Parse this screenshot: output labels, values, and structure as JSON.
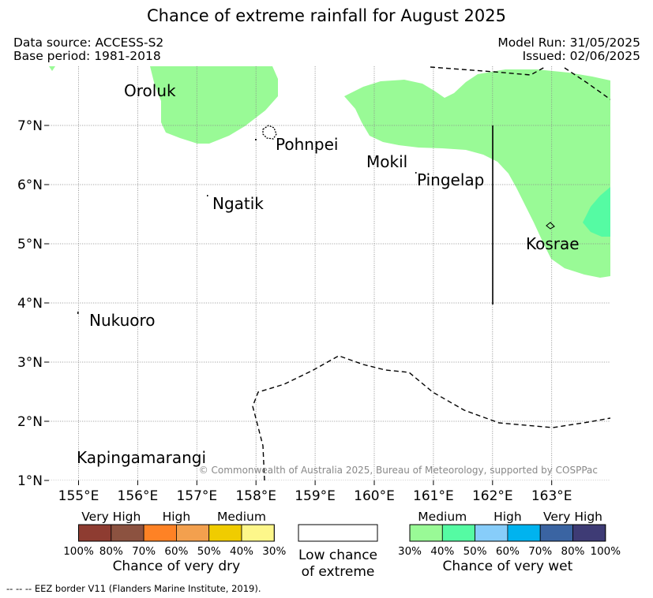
{
  "title": "Chance of extreme rainfall for August 2025",
  "header": {
    "data_source": "Data source: ACCESS-S2",
    "base_period": "Base period: 1981-2018",
    "model_run": "Model Run: 31/05/2025",
    "issued": "Issued: 02/06/2025"
  },
  "map": {
    "lon_range": [
      154.5,
      164
    ],
    "lat_range": [
      1,
      8
    ],
    "lat_ticks": [
      {
        "value": 7,
        "label": "7°N"
      },
      {
        "value": 6,
        "label": "6°N"
      },
      {
        "value": 5,
        "label": "5°N"
      },
      {
        "value": 4,
        "label": "4°N"
      },
      {
        "value": 3,
        "label": "3°N"
      },
      {
        "value": 2,
        "label": "2°N"
      },
      {
        "value": 1,
        "label": "1°N"
      }
    ],
    "lon_ticks": [
      {
        "value": 155,
        "label": "155°E"
      },
      {
        "value": 156,
        "label": "156°E"
      },
      {
        "value": 157,
        "label": "157°E"
      },
      {
        "value": 158,
        "label": "158°E"
      },
      {
        "value": 159,
        "label": "159°E"
      },
      {
        "value": 160,
        "label": "160°E"
      },
      {
        "value": 161,
        "label": "161°E"
      },
      {
        "value": 162,
        "label": "162°E"
      },
      {
        "value": 163,
        "label": "163°E"
      }
    ],
    "places": [
      {
        "name": "Oroluk"
      },
      {
        "name": "Pohnpei"
      },
      {
        "name": "Mokil"
      },
      {
        "name": "Pingelap"
      },
      {
        "name": "Ngatik"
      },
      {
        "name": "Kosrae"
      },
      {
        "name": "Nukuoro"
      },
      {
        "name": "Kapingamarangi"
      }
    ],
    "copyright": "© Commonwealth of Australia 2025, Bureau of Meteorology, supported by COSPPac"
  },
  "colors": {
    "wet_medium_30_40": "#99fa96",
    "wet_medium_40_50": "#55fba3"
  },
  "legend": {
    "dry": {
      "categories": [
        "Very High",
        "High",
        "Medium"
      ],
      "colors": [
        "#8e3c31",
        "#8c5240",
        "#fe8225",
        "#f3a04e",
        "#f0cc00",
        "#fdf78a"
      ],
      "ticks": [
        "100%",
        "80%",
        "70%",
        "60%",
        "50%",
        "40%",
        "30%"
      ],
      "caption": "Chance of very dry"
    },
    "low": {
      "line1": "Low chance",
      "line2": "of extreme"
    },
    "wet": {
      "categories": [
        "Medium",
        "High",
        "Very High"
      ],
      "colors": [
        "#99fa96",
        "#55fba3",
        "#87cdfa",
        "#00b3ef",
        "#3a64a2",
        "#3e3b75"
      ],
      "ticks": [
        "30%",
        "40%",
        "50%",
        "60%",
        "70%",
        "80%",
        "100%"
      ],
      "caption": "Chance of very wet"
    }
  },
  "footnote": "--  --  -- EEZ border V11 (Flanders Marine Institute, 2019)."
}
